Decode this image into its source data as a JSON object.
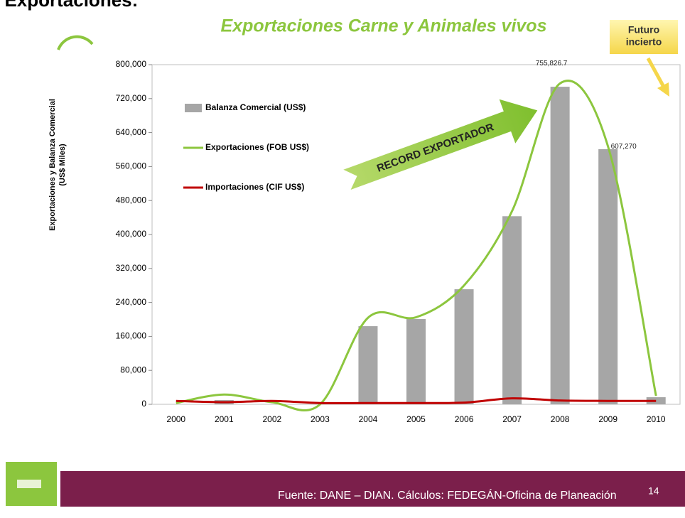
{
  "page_title": "I Exportaciones:",
  "chart_data": {
    "type": "bar",
    "title": "Exportaciones Carne y Animales vivos",
    "ylabel": [
      "Exportaciones y Balanza Comercial",
      "(US$ Miles)"
    ],
    "categories": [
      "2000",
      "2001",
      "2002",
      "2003",
      "2004",
      "2005",
      "2006",
      "2007",
      "2008",
      "2009",
      "2010"
    ],
    "series": [
      {
        "name": "Balanza Comercial (US$)",
        "type": "bar",
        "color": "#a6a6a6",
        "values": [
          0,
          10000,
          0,
          0,
          184000,
          201000,
          271000,
          443000,
          748000,
          601000,
          16700
        ]
      },
      {
        "name": "Exportaciones (FOB US$)",
        "type": "line",
        "color": "#8cc63e",
        "values": [
          3000,
          23000,
          5000,
          0,
          204000,
          205000,
          280000,
          455000,
          755826.7,
          607270,
          20000
        ],
        "value_labels": [
          null,
          null,
          null,
          null,
          null,
          null,
          null,
          null,
          "755,826.7",
          "607,270",
          null
        ]
      },
      {
        "name": "Importaciones (CIF US$)",
        "type": "line",
        "color": "#c00000",
        "values": [
          8000,
          5000,
          8000,
          3000,
          3000,
          3000,
          4000,
          14000,
          9000,
          8000,
          8000
        ]
      }
    ],
    "ylim": [
      0,
      800000
    ],
    "yticks": [
      0,
      {
        "value": 80000,
        "label": "80,000"
      },
      {
        "value": 160000,
        "label": "160,000"
      },
      {
        "value": 240000,
        "label": "240,000"
      },
      {
        "value": 320000,
        "label": "320,000"
      },
      {
        "value": 400000,
        "label": "400,000"
      },
      {
        "value": 480000,
        "label": "480,000"
      },
      {
        "value": 560000,
        "label": "560,000"
      },
      {
        "value": 640000,
        "label": "640,000"
      },
      {
        "value": 720000,
        "label": "720,000"
      },
      {
        "value": 800000,
        "label": "800,000"
      }
    ],
    "legend": "upper left",
    "annotations": {
      "record": "RECORD EXPORTADOR",
      "future": [
        "Futuro",
        "incierto"
      ]
    }
  },
  "footer": {
    "source": "Fuente: DANE – DIAN. Cálculos: FEDEGÁN-Oficina de Planeación",
    "page_number": "14"
  }
}
